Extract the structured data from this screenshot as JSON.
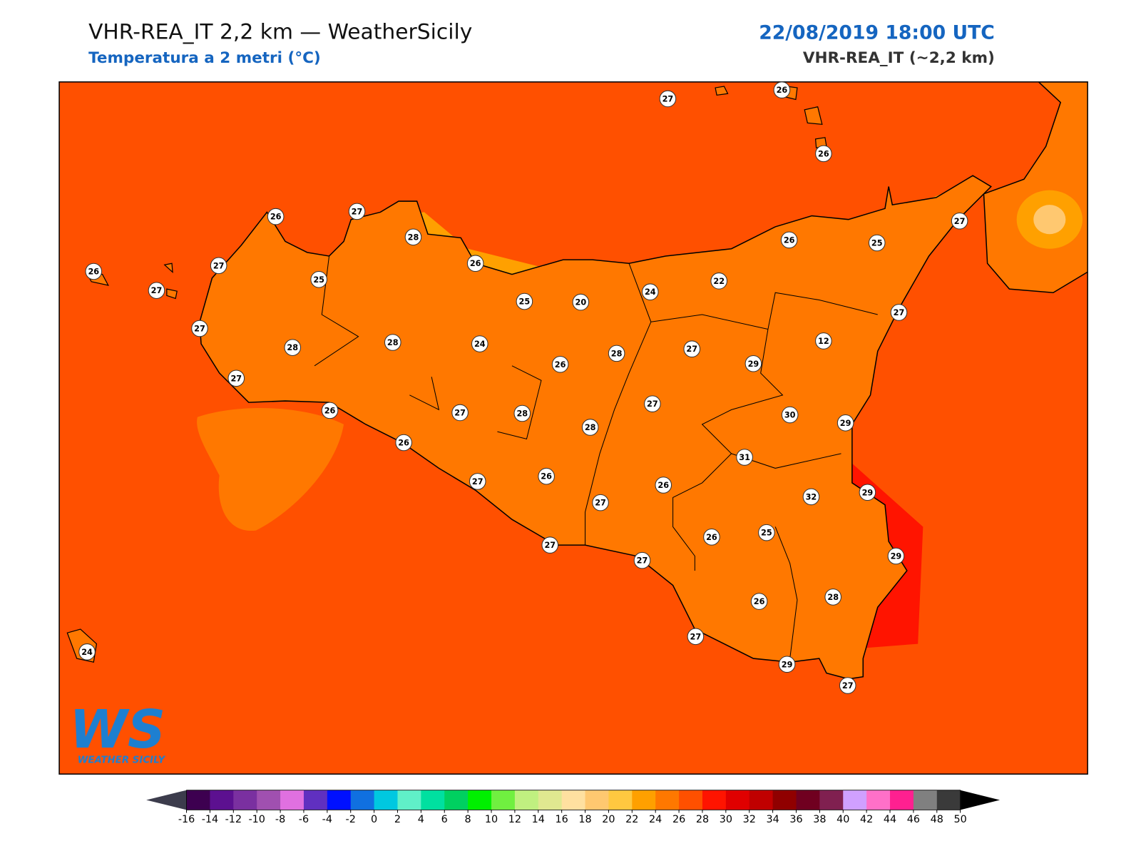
{
  "header": {
    "title": "VHR-REA_IT 2,2 km — WeatherSicily",
    "subtitle": "Temperatura a 2 metri (°C)",
    "datetime": "22/08/2019 18:00 UTC",
    "model": "VHR-REA_IT (~2,2 km)"
  },
  "stations": [
    27,
    26,
    26,
    26,
    27,
    28,
    26,
    26,
    27,
    25,
    27,
    25,
    20,
    24,
    22,
    26,
    25,
    27,
    27,
    27,
    28,
    28,
    24,
    26,
    28,
    27,
    29,
    12,
    27,
    26,
    27,
    28,
    28,
    27,
    30,
    29,
    26,
    31,
    27,
    26,
    26,
    27,
    32,
    29,
    25,
    26,
    27,
    27,
    29,
    28,
    26,
    27,
    29,
    27,
    24
  ],
  "colorbar": {
    "ticks": [
      -16,
      -14,
      -12,
      -10,
      -8,
      -6,
      -4,
      -2,
      0,
      2,
      4,
      6,
      8,
      10,
      12,
      14,
      16,
      18,
      20,
      22,
      24,
      26,
      28,
      30,
      32,
      34,
      36,
      38,
      40,
      42,
      44,
      46,
      48,
      50
    ],
    "colors": [
      "#3d0050",
      "#5c1090",
      "#7a30a0",
      "#a050b0",
      "#e070e0",
      "#6030c0",
      "#0010ff",
      "#1070e0",
      "#00c8e0",
      "#60f0c8",
      "#00e0a0",
      "#00d060",
      "#00f000",
      "#70f040",
      "#c0f080",
      "#e0e890",
      "#ffe0a0",
      "#ffc870",
      "#ffc840",
      "#ffa000",
      "#ff7800",
      "#ff5000",
      "#ff1400",
      "#e00000",
      "#c00000",
      "#900000",
      "#700020",
      "#802050",
      "#d0a0ff",
      "#ff70c8",
      "#ff2090",
      "#808080",
      "#3a3a3a"
    ],
    "under": "#3c3c4c",
    "over": "#000000"
  },
  "logo": {
    "mark": "WS",
    "name": "WEATHER SICILY"
  }
}
